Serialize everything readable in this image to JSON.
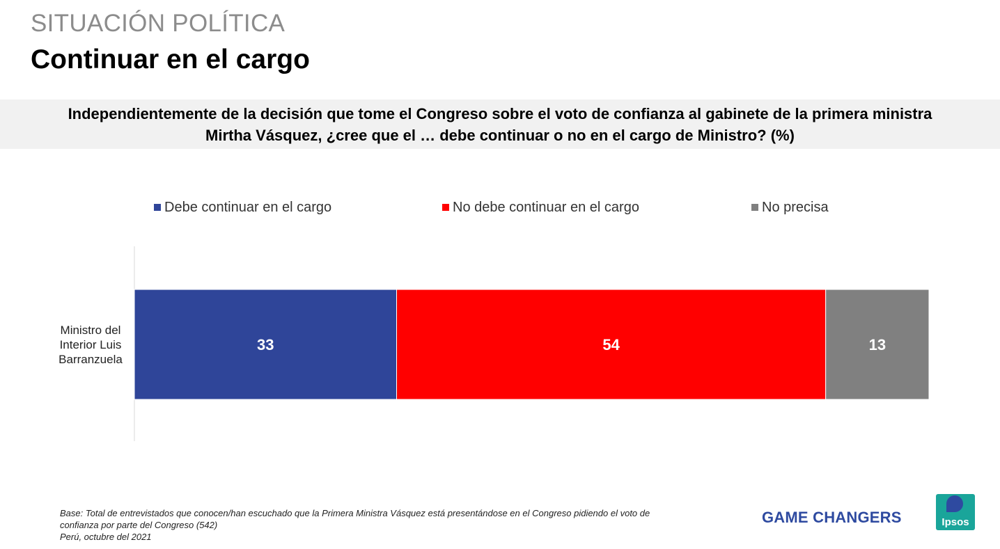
{
  "header": {
    "section_label": "SITUACIÓN POLÍTICA",
    "title": "Continuar en el cargo"
  },
  "question": {
    "line1": "Independientemente de la decisión que tome el Congreso sobre el voto de confianza al gabinete de la primera ministra",
    "line2": "Mirtha Vásquez, ¿cree que el … debe continuar o no en el cargo de Ministro? (%)"
  },
  "chart_data": {
    "type": "bar",
    "orientation": "horizontal",
    "stacked": "100%",
    "categories": [
      "Ministro del Interior Luis Barranzuela"
    ],
    "category_lines": [
      "Ministro del",
      "Interior Luis",
      "Barranzuela"
    ],
    "series": [
      {
        "name": "Debe continuar en el cargo",
        "values": [
          33
        ],
        "color": "#2f4599"
      },
      {
        "name": "No debe continuar en el cargo",
        "values": [
          54
        ],
        "color": "#ff0000"
      },
      {
        "name": "No precisa",
        "values": [
          13
        ],
        "color": "#808080"
      }
    ],
    "data_labels": true,
    "legend_position": "top",
    "grid": false
  },
  "footer": {
    "note_line1": "Base: Total de entrevistados que conocen/han escuchado que la Primera Ministra Vásquez está presentándose en el Congreso pidiendo el voto de",
    "note_line2": "confianza por parte del Congreso (542)",
    "note_line3": "Perú, octubre del 2021",
    "tagline": "GAME CHANGERS",
    "logo_text": "Ipsos"
  },
  "colors": {
    "brand_blue": "#2e4aa0",
    "brand_teal": "#1aa59a"
  }
}
